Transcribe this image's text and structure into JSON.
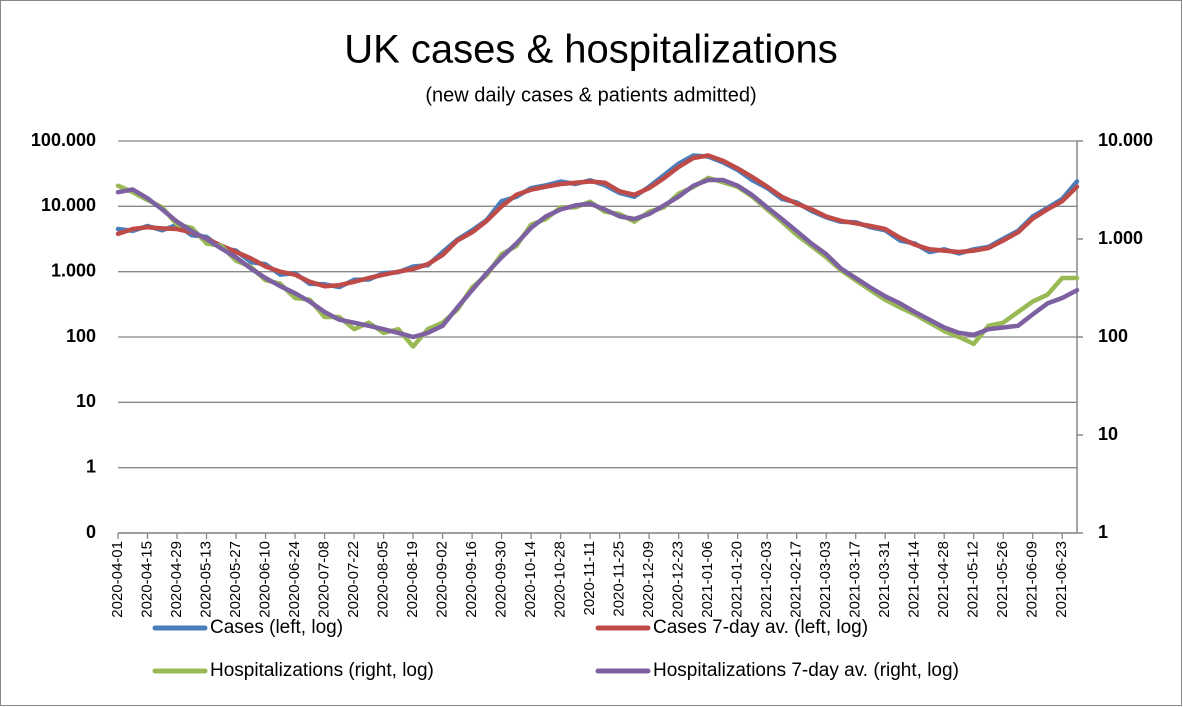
{
  "chart_data": {
    "type": "line",
    "title": "UK cases & hospitalizations",
    "subtitle": "(new daily cases & patients admitted)",
    "x": [
      "2020-04-01",
      "2020-04-08",
      "2020-04-15",
      "2020-04-22",
      "2020-04-29",
      "2020-05-06",
      "2020-05-13",
      "2020-05-20",
      "2020-05-27",
      "2020-06-03",
      "2020-06-10",
      "2020-06-17",
      "2020-06-24",
      "2020-07-01",
      "2020-07-08",
      "2020-07-15",
      "2020-07-22",
      "2020-07-29",
      "2020-08-05",
      "2020-08-12",
      "2020-08-19",
      "2020-08-26",
      "2020-09-02",
      "2020-09-09",
      "2020-09-16",
      "2020-09-23",
      "2020-09-30",
      "2020-10-07",
      "2020-10-14",
      "2020-10-21",
      "2020-10-28",
      "2020-11-04",
      "2020-11-11",
      "2020-11-18",
      "2020-11-25",
      "2020-12-02",
      "2020-12-09",
      "2020-12-16",
      "2020-12-23",
      "2020-12-30",
      "2021-01-06",
      "2021-01-13",
      "2021-01-20",
      "2021-01-27",
      "2021-02-03",
      "2021-02-10",
      "2021-02-17",
      "2021-02-24",
      "2021-03-03",
      "2021-03-10",
      "2021-03-17",
      "2021-03-24",
      "2021-03-31",
      "2021-04-07",
      "2021-04-14",
      "2021-04-21",
      "2021-04-28",
      "2021-05-05",
      "2021-05-12",
      "2021-05-19",
      "2021-05-26",
      "2021-06-02",
      "2021-06-09",
      "2021-06-16",
      "2021-06-23",
      "2021-06-30"
    ],
    "xlim": [
      "2020-04-01",
      "2021-06-30"
    ],
    "xticks": [
      "2020-04-01",
      "2020-04-15",
      "2020-04-29",
      "2020-05-13",
      "2020-05-27",
      "2020-06-10",
      "2020-06-24",
      "2020-07-08",
      "2020-07-22",
      "2020-08-05",
      "2020-08-19",
      "2020-09-02",
      "2020-09-16",
      "2020-09-30",
      "2020-10-14",
      "2020-10-28",
      "2020-11-11",
      "2020-11-25",
      "2020-12-09",
      "2020-12-23",
      "2021-01-06",
      "2021-01-20",
      "2021-02-03",
      "2021-02-17",
      "2021-03-03",
      "2021-03-17",
      "2021-03-31",
      "2021-04-14",
      "2021-04-28",
      "2021-05-12",
      "2021-05-26",
      "2021-06-09",
      "2021-06-23"
    ],
    "ylim": [
      0.1,
      100000
    ],
    "yticks": [
      {
        "value": 0.1,
        "label": "0"
      },
      1,
      10,
      100,
      {
        "value": 1000,
        "label": "1.000"
      },
      {
        "value": 10000,
        "label": "10.000"
      },
      {
        "value": 100000,
        "label": "100.000"
      }
    ],
    "y2lim": [
      1,
      10000
    ],
    "y2ticks": [
      1,
      10,
      100,
      {
        "value": 1000,
        "label": "1.000"
      },
      {
        "value": 10000,
        "label": "10.000"
      }
    ],
    "log_scale": true,
    "grid": true,
    "legend": "bottom",
    "series": [
      {
        "name": "Cases (left, log)",
        "color": "#4a7ebb",
        "values": [
          4500,
          4200,
          5000,
          4300,
          5200,
          3600,
          3400,
          2300,
          2100,
          1400,
          1300,
          900,
          950,
          650,
          640,
          580,
          750,
          760,
          950,
          980,
          1200,
          1250,
          2000,
          3100,
          4300,
          6200,
          12000,
          14000,
          19000,
          21000,
          24000,
          22000,
          25000,
          21000,
          16000,
          14000,
          20000,
          30000,
          45000,
          60000,
          58000,
          47000,
          36000,
          25000,
          19000,
          13000,
          11500,
          8500,
          6800,
          5800,
          5700,
          4800,
          4300,
          3000,
          2700,
          2000,
          2200,
          1900,
          2200,
          2400,
          3200,
          4200,
          7000,
          9500,
          13000,
          24000
        ]
      },
      {
        "name": "Cases 7-day av. (left, log)",
        "color": "#be4b48",
        "values": [
          3800,
          4500,
          4800,
          4600,
          4500,
          4000,
          3200,
          2500,
          2000,
          1600,
          1200,
          1000,
          900,
          700,
          600,
          620,
          700,
          800,
          900,
          1000,
          1100,
          1300,
          1800,
          3000,
          4000,
          6000,
          10000,
          15000,
          18000,
          20000,
          22000,
          23000,
          24000,
          23000,
          17000,
          15000,
          19000,
          27000,
          40000,
          55000,
          60000,
          50000,
          38000,
          28000,
          20000,
          14000,
          11000,
          9000,
          7000,
          6000,
          5500,
          5000,
          4500,
          3300,
          2600,
          2200,
          2100,
          2000,
          2100,
          2300,
          3000,
          4000,
          6500,
          9000,
          12000,
          20000
        ]
      },
      {
        "name": "Hospitalizations (right, log)",
        "color": "#98b954",
        "axis": "y2",
        "values": [
          3500,
          3000,
          2500,
          2100,
          1400,
          1300,
          900,
          850,
          600,
          520,
          380,
          350,
          250,
          240,
          160,
          160,
          120,
          140,
          110,
          120,
          80,
          120,
          140,
          190,
          320,
          430,
          700,
          850,
          1400,
          1600,
          2100,
          2100,
          2400,
          1900,
          1800,
          1500,
          1900,
          2100,
          2900,
          3400,
          4200,
          3800,
          3400,
          2700,
          2000,
          1500,
          1100,
          850,
          650,
          480,
          380,
          300,
          240,
          200,
          170,
          140,
          115,
          100,
          85,
          130,
          140,
          180,
          230,
          270,
          400,
          400
        ]
      },
      {
        "name": "Hospitalizations 7-day av. (right, log)",
        "color": "#7d60a0",
        "axis": "y2",
        "values": [
          3000,
          3200,
          2600,
          2000,
          1500,
          1200,
          1000,
          800,
          650,
          500,
          400,
          330,
          280,
          230,
          180,
          150,
          140,
          130,
          120,
          110,
          100,
          110,
          130,
          200,
          300,
          450,
          650,
          900,
          1300,
          1700,
          2000,
          2200,
          2300,
          2000,
          1700,
          1600,
          1800,
          2200,
          2700,
          3500,
          4000,
          4000,
          3500,
          2800,
          2100,
          1600,
          1200,
          900,
          700,
          500,
          400,
          320,
          260,
          220,
          180,
          150,
          125,
          110,
          105,
          120,
          125,
          130,
          170,
          220,
          250,
          300
        ]
      }
    ]
  }
}
